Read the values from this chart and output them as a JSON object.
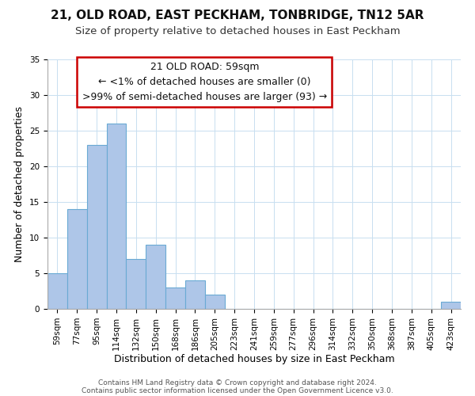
{
  "title": "21, OLD ROAD, EAST PECKHAM, TONBRIDGE, TN12 5AR",
  "subtitle": "Size of property relative to detached houses in East Peckham",
  "xlabel": "Distribution of detached houses by size in East Peckham",
  "ylabel": "Number of detached properties",
  "bar_color": "#aec6e8",
  "bar_edge_color": "#6aaad4",
  "background_color": "#ffffff",
  "grid_color": "#c8dff0",
  "annotation_box_color": "#cc0000",
  "annotation_line1": "21 OLD ROAD: 59sqm",
  "annotation_line2": "← <1% of detached houses are smaller (0)",
  "annotation_line3": ">99% of semi-detached houses are larger (93) →",
  "bin_labels": [
    "59sqm",
    "77sqm",
    "95sqm",
    "114sqm",
    "132sqm",
    "150sqm",
    "168sqm",
    "186sqm",
    "205sqm",
    "223sqm",
    "241sqm",
    "259sqm",
    "277sqm",
    "296sqm",
    "314sqm",
    "332sqm",
    "350sqm",
    "368sqm",
    "387sqm",
    "405sqm",
    "423sqm"
  ],
  "bar_heights": [
    5,
    14,
    23,
    26,
    7,
    9,
    3,
    4,
    2,
    0,
    0,
    0,
    0,
    0,
    0,
    0,
    0,
    0,
    0,
    0,
    1
  ],
  "ylim": [
    0,
    35
  ],
  "yticks": [
    0,
    5,
    10,
    15,
    20,
    25,
    30,
    35
  ],
  "footer_line1": "Contains HM Land Registry data © Crown copyright and database right 2024.",
  "footer_line2": "Contains public sector information licensed under the Open Government Licence v3.0.",
  "title_fontsize": 11,
  "subtitle_fontsize": 9.5,
  "axis_label_fontsize": 9,
  "tick_fontsize": 7.5,
  "annotation_fontsize": 9,
  "footer_fontsize": 6.5
}
